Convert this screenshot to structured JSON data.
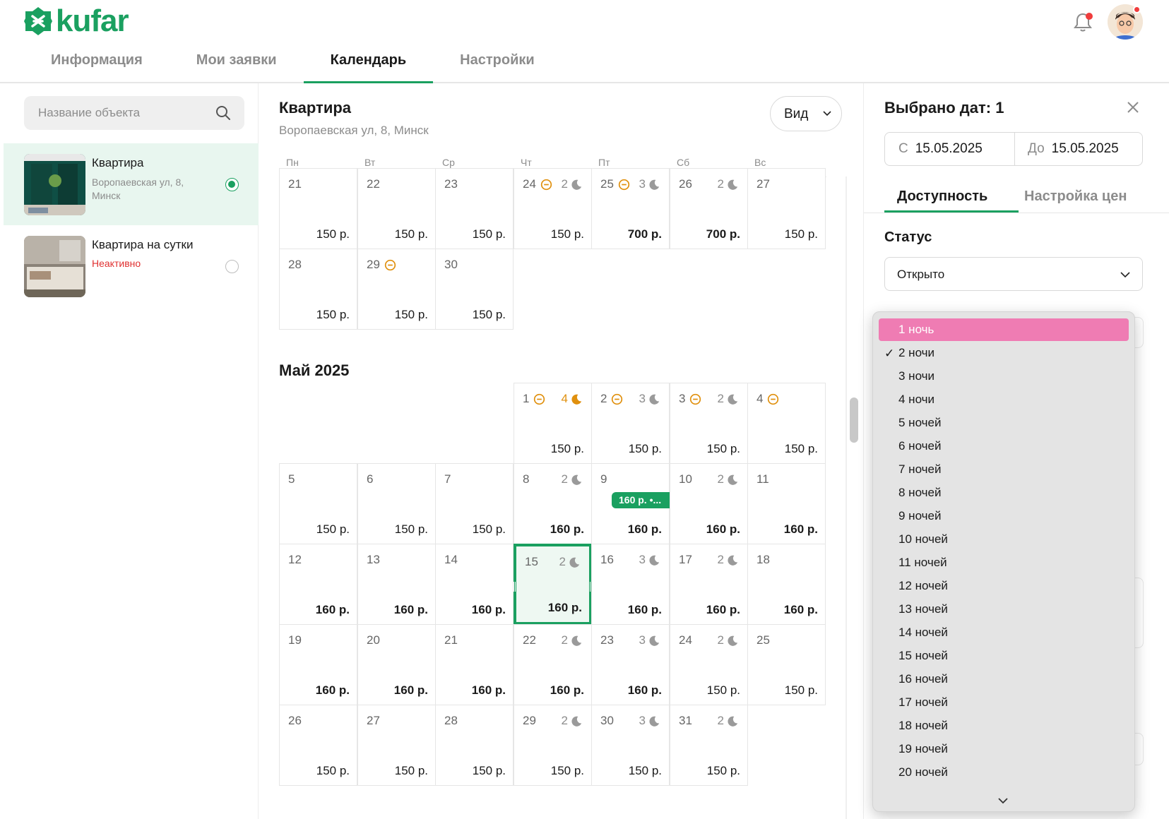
{
  "header": {
    "logo_text": "kufar",
    "tabs": [
      "Информация",
      "Мои заявки",
      "Календарь",
      "Настройки"
    ],
    "active_tab": "Календарь"
  },
  "sidebar": {
    "search_placeholder": "Название объекта",
    "objects": [
      {
        "title": "Квартира",
        "address": "Воропаевская ул, 8, Минск",
        "selected": true
      },
      {
        "title": "Квартира на сутки",
        "status": "Неактивно",
        "selected": false
      }
    ]
  },
  "calendar": {
    "title": "Квартира",
    "address": "Воропаевская ул, 8, Минск",
    "view_button": "Вид",
    "weekdays": [
      "Пн",
      "Вт",
      "Ср",
      "Чт",
      "Пт",
      "Сб",
      "Вс"
    ],
    "month2": "Май 2025",
    "april_rows": [
      [
        {
          "d": "21",
          "p": "150 р."
        },
        {
          "d": "22",
          "p": "150 р."
        },
        {
          "d": "23",
          "p": "150 р."
        },
        {
          "d": "24",
          "min": true,
          "n": "2",
          "p": "150 р."
        },
        {
          "d": "25",
          "min": true,
          "n": "3",
          "p": "700 р.",
          "b": true
        },
        {
          "d": "26",
          "n": "2",
          "p": "700 р.",
          "b": true
        },
        {
          "d": "27",
          "p": "150 р."
        }
      ],
      [
        {
          "d": "28",
          "p": "150 р."
        },
        {
          "d": "29",
          "min": true,
          "p": "150 р."
        },
        {
          "d": "30",
          "p": "150 р."
        }
      ]
    ],
    "may_rows": [
      [
        null,
        null,
        null,
        {
          "d": "1",
          "min": true,
          "n": "4",
          "or": true,
          "p": "150 р."
        },
        {
          "d": "2",
          "min": true,
          "n": "3",
          "p": "150 р."
        },
        {
          "d": "3",
          "min": true,
          "n": "2",
          "p": "150 р."
        },
        {
          "d": "4",
          "min": true,
          "p": "150 р."
        }
      ],
      [
        {
          "d": "5",
          "p": "150 р."
        },
        {
          "d": "6",
          "p": "150 р."
        },
        {
          "d": "7",
          "p": "150 р."
        },
        {
          "d": "8",
          "n": "2",
          "p": "160 р.",
          "b": true
        },
        {
          "d": "9",
          "chip": "160 р. •...",
          "p": "160 р.",
          "b": true
        },
        {
          "d": "10",
          "n": "2",
          "p": "160 р.",
          "b": true
        },
        {
          "d": "11",
          "p": "160 р.",
          "b": true
        }
      ],
      [
        {
          "d": "12",
          "p": "160 р.",
          "b": true
        },
        {
          "d": "13",
          "p": "160 р.",
          "b": true
        },
        {
          "d": "14",
          "p": "160 р.",
          "b": true
        },
        {
          "d": "15",
          "n": "2",
          "p": "160 р.",
          "b": true,
          "sel": true
        },
        {
          "d": "16",
          "n": "3",
          "p": "160 р.",
          "b": true
        },
        {
          "d": "17",
          "n": "2",
          "p": "160 р.",
          "b": true
        },
        {
          "d": "18",
          "p": "160 р.",
          "b": true
        }
      ],
      [
        {
          "d": "19",
          "p": "160 р.",
          "b": true
        },
        {
          "d": "20",
          "p": "160 р.",
          "b": true
        },
        {
          "d": "21",
          "p": "160 р.",
          "b": true
        },
        {
          "d": "22",
          "n": "2",
          "p": "160 р.",
          "b": true
        },
        {
          "d": "23",
          "n": "3",
          "p": "160 р.",
          "b": true
        },
        {
          "d": "24",
          "n": "2",
          "p": "150 р."
        },
        {
          "d": "25",
          "p": "150 р."
        }
      ],
      [
        {
          "d": "26",
          "p": "150 р."
        },
        {
          "d": "27",
          "p": "150 р."
        },
        {
          "d": "28",
          "p": "150 р."
        },
        {
          "d": "29",
          "n": "2",
          "p": "150 р."
        },
        {
          "d": "30",
          "n": "3",
          "p": "150 р."
        },
        {
          "d": "31",
          "n": "2",
          "p": "150 р."
        }
      ]
    ]
  },
  "panel": {
    "title": "Выбрано дат: 1",
    "from_label": "С",
    "from_value": "15.05.2025",
    "to_label": "До",
    "to_value": "15.05.2025",
    "tabs": [
      "Доступность",
      "Настройка цен"
    ],
    "status_label": "Статус",
    "status_value": "Открыто"
  },
  "dropdown": {
    "options": [
      "1 ночь",
      "2 ночи",
      "3 ночи",
      "4 ночи",
      "5 ночей",
      "6 ночей",
      "7 ночей",
      "8 ночей",
      "9 ночей",
      "10 ночей",
      "11 ночей",
      "12 ночей",
      "13 ночей",
      "14 ночей",
      "15 ночей",
      "16 ночей",
      "17 ночей",
      "18 ночей",
      "19 ночей",
      "20 ночей"
    ],
    "highlighted": "1 ночь",
    "checked": "2 ночи"
  },
  "colors": {
    "brand": "#1aa060",
    "highlight": "#ef7cb3",
    "warning": "#e0900e",
    "inactive": "#e03030"
  }
}
